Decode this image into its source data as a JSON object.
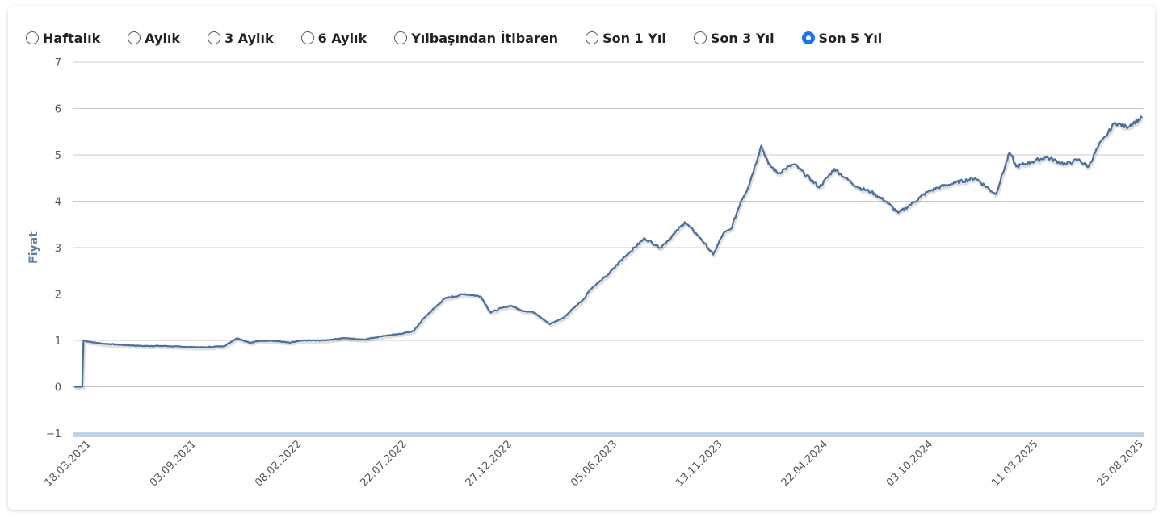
{
  "ranges": [
    {
      "label": "Haftalık",
      "checked": false
    },
    {
      "label": "Aylık",
      "checked": false
    },
    {
      "label": "3 Aylık",
      "checked": false
    },
    {
      "label": "6 Aylık",
      "checked": false
    },
    {
      "label": "Yılbaşından İtibaren",
      "checked": false
    },
    {
      "label": "Son 1 Yıl",
      "checked": false
    },
    {
      "label": "Son 3 Yıl",
      "checked": false
    },
    {
      "label": "Son 5 Yıl",
      "checked": true
    }
  ],
  "colors": {
    "line": "#4a6f9c",
    "grid": "#c8c8c8",
    "axis": "#c2d2e6"
  },
  "chart_data": {
    "type": "line",
    "title": "",
    "xlabel": "",
    "ylabel": "Fiyat",
    "ylim": [
      -1,
      7
    ],
    "yticks": [
      -1,
      0,
      1,
      2,
      3,
      4,
      5,
      6,
      7
    ],
    "xticks": [
      "18.03.2021",
      "03.09.2021",
      "08.02.2022",
      "22.07.2022",
      "27.12.2022",
      "05.06.2023",
      "13.11.2023",
      "22.04.2024",
      "03.10.2024",
      "11.03.2025",
      "25.08.2025"
    ],
    "grid": true,
    "legend": "none",
    "series": [
      {
        "x": [
          "2021-03-18",
          "2021-03-30",
          "2021-04-01",
          "2021-04-10",
          "2021-05-01",
          "2021-06-01",
          "2021-07-01",
          "2021-08-01",
          "2021-09-03",
          "2021-10-01",
          "2021-11-01",
          "2021-11-20",
          "2021-12-10",
          "2021-12-20",
          "2022-01-10",
          "2022-02-08",
          "2022-03-01",
          "2022-04-01",
          "2022-05-01",
          "2022-06-01",
          "2022-07-01",
          "2022-07-22",
          "2022-08-15",
          "2022-09-01",
          "2022-10-01",
          "2022-11-01",
          "2022-11-25",
          "2022-12-10",
          "2022-12-27",
          "2023-01-10",
          "2023-01-25",
          "2023-02-15",
          "2023-03-10",
          "2023-04-01",
          "2023-04-15",
          "2023-05-01",
          "2023-05-10",
          "2023-06-05",
          "2023-07-01",
          "2023-08-01",
          "2023-08-25",
          "2023-09-15",
          "2023-10-01",
          "2023-10-25",
          "2023-11-13",
          "2023-11-28",
          "2023-12-10",
          "2023-12-25",
          "2024-01-05",
          "2024-01-25",
          "2024-02-05",
          "2024-02-20",
          "2024-03-01",
          "2024-03-15",
          "2024-04-22",
          "2024-05-15",
          "2024-06-01",
          "2024-06-20",
          "2024-07-10",
          "2024-08-01",
          "2024-08-20",
          "2024-09-05",
          "2024-10-03",
          "2024-10-20",
          "2024-11-15",
          "2024-12-15",
          "2025-01-15",
          "2025-02-05",
          "2025-02-15",
          "2025-03-11",
          "2025-04-01",
          "2025-05-01",
          "2025-05-20",
          "2025-06-05",
          "2025-06-20",
          "2025-07-01",
          "2025-07-15",
          "2025-08-01",
          "2025-08-25"
        ],
        "y": [
          0.0,
          0.0,
          1.0,
          0.97,
          0.93,
          0.9,
          0.88,
          0.88,
          0.86,
          0.85,
          0.88,
          1.05,
          0.95,
          0.98,
          1.0,
          0.95,
          1.0,
          1.0,
          1.05,
          1.02,
          1.1,
          1.13,
          1.2,
          1.5,
          1.9,
          2.0,
          1.95,
          1.6,
          1.7,
          1.75,
          1.65,
          1.6,
          1.35,
          1.5,
          1.7,
          1.9,
          2.1,
          2.4,
          2.8,
          3.2,
          3.0,
          3.3,
          3.55,
          3.2,
          2.85,
          3.3,
          3.4,
          4.0,
          4.3,
          5.2,
          4.8,
          4.6,
          4.7,
          4.8,
          4.3,
          4.7,
          4.5,
          4.3,
          4.2,
          4.0,
          3.75,
          3.9,
          4.2,
          4.3,
          4.4,
          4.5,
          4.15,
          5.05,
          4.75,
          4.85,
          4.95,
          4.8,
          4.9,
          4.75,
          5.2,
          5.4,
          5.7,
          5.6,
          5.8
        ]
      }
    ]
  }
}
